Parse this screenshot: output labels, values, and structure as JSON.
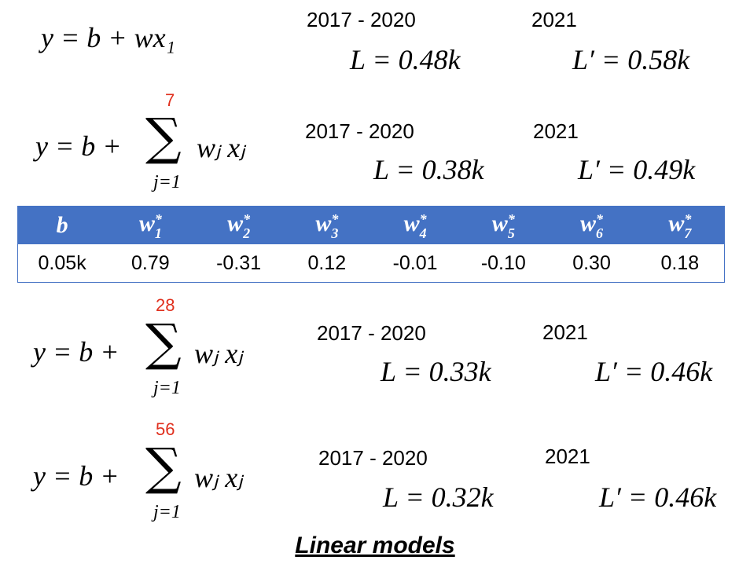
{
  "models": [
    {
      "formula": "y = b + wx₁",
      "period": "2017 - 2020",
      "train_loss": "L = 0.48k",
      "test_year": "2021",
      "test_loss": "L′ = 0.58k"
    },
    {
      "formula": "y = b +",
      "sum": "∑",
      "upper": "7",
      "lower": "j=1",
      "term": "wⱼ xⱼ",
      "period": "2017 - 2020",
      "train_loss": "L = 0.38k",
      "test_year": "2021",
      "test_loss": "L′ = 0.49k"
    },
    {
      "formula": "y = b +",
      "sum": "∑",
      "upper": "28",
      "lower": "j=1",
      "term": "wⱼ xⱼ",
      "period": "2017 - 2020",
      "train_loss": "L = 0.33k",
      "test_year": "2021",
      "test_loss": "L′ = 0.46k"
    },
    {
      "formula": "y = b +",
      "sum": "∑",
      "upper": "56",
      "lower": "j=1",
      "term": "wⱼ xⱼ",
      "period": "2017 - 2020",
      "train_loss": "L = 0.32k",
      "test_year": "2021",
      "test_loss": "L′ = 0.46k"
    }
  ],
  "table": {
    "header": [
      {
        "base": "b"
      },
      {
        "base": "w",
        "sup": "*",
        "sub": "1"
      },
      {
        "base": "w",
        "sup": "*",
        "sub": "2"
      },
      {
        "base": "w",
        "sup": "*",
        "sub": "3"
      },
      {
        "base": "w",
        "sup": "*",
        "sub": "4"
      },
      {
        "base": "w",
        "sup": "*",
        "sub": "5"
      },
      {
        "base": "w",
        "sup": "*",
        "sub": "6"
      },
      {
        "base": "w",
        "sup": "*",
        "sub": "7"
      }
    ],
    "row": [
      "0.05k",
      "0.79",
      "-0.31",
      "0.12",
      "-0.01",
      "-0.10",
      "0.30",
      "0.18"
    ]
  },
  "footer": "Linear models"
}
